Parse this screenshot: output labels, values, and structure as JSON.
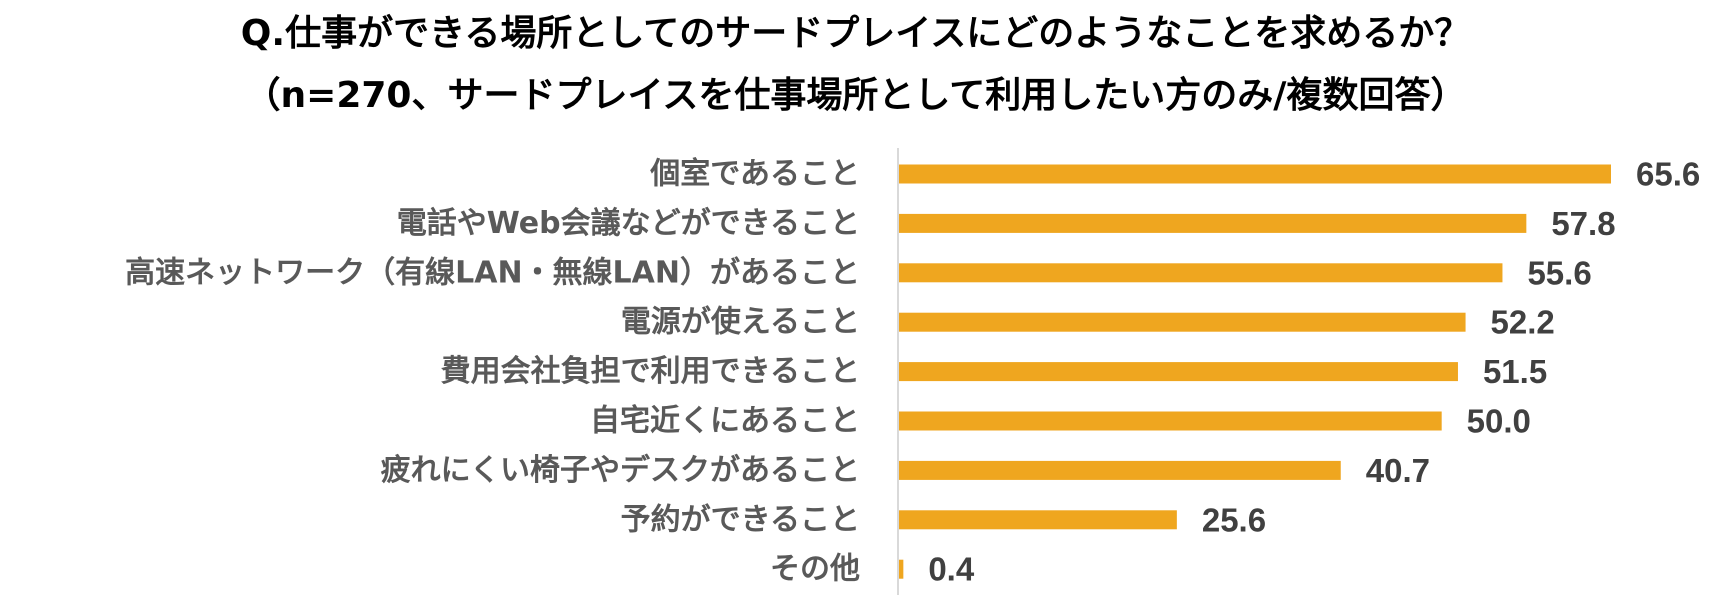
{
  "title": {
    "line1": "Q.仕事ができる場所としてのサードプレイスにどのようなことを求めるか？",
    "line2": "（n=270、サードプレイスを仕事場所として利用したい方のみ/複数回答）"
  },
  "colors": {
    "bar": "#EFA61F",
    "axis": "#D9D9D9",
    "category_text": "#595959",
    "value_text": "#404040"
  },
  "chart_data": {
    "type": "bar",
    "orientation": "horizontal",
    "categories": [
      "個室であること",
      "電話やWeb会議などができること",
      "高速ネットワーク（有線LAN・無線LAN）があること",
      "電源が使えること",
      "費用会社負担で利用できること",
      "自宅近くにあること",
      "疲れにくい椅子やデスクがあること",
      "予約ができること",
      "その他"
    ],
    "values": [
      65.6,
      57.8,
      55.6,
      52.2,
      51.5,
      50.0,
      40.7,
      25.6,
      0.4
    ],
    "value_labels": [
      "65.6",
      "57.8",
      "55.6",
      "52.2",
      "51.5",
      "50.0",
      "40.7",
      "25.6",
      "0.4"
    ],
    "xlim": [
      0,
      70
    ],
    "grid": false,
    "legend": "none"
  }
}
